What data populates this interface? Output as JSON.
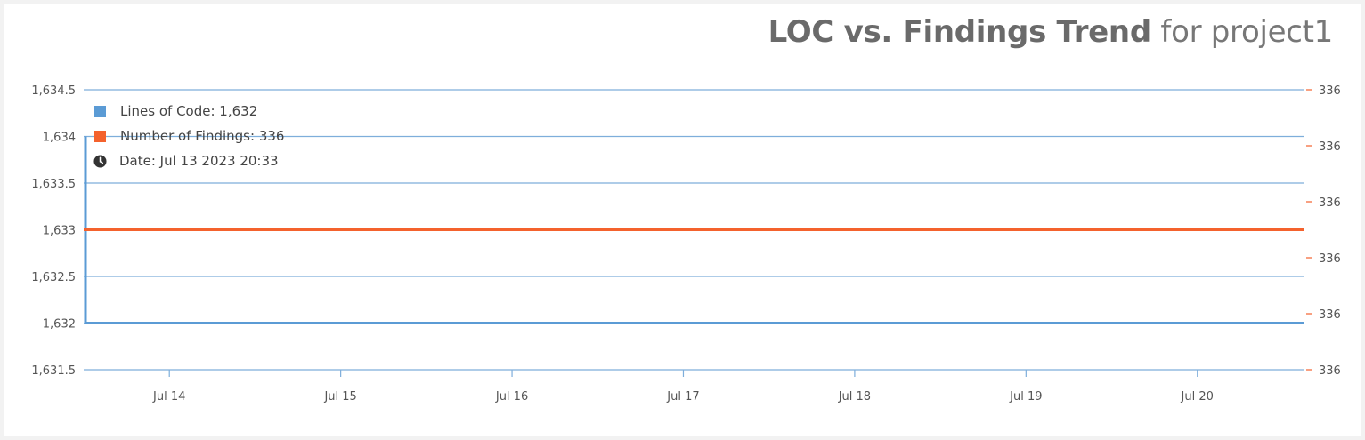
{
  "title": {
    "bold": "LOC vs. Findings Trend",
    "rest": "for project1"
  },
  "legend": {
    "loc_label": "Lines of Code: 1,632",
    "findings_label": "Number of Findings: 336",
    "date_label": "Date: Jul 13 2023 20:33",
    "date_icon": "clock-icon"
  },
  "colors": {
    "loc": "#5b9bd5",
    "findings": "#f4622d",
    "grid": "#7eaedb"
  },
  "chart_data": {
    "type": "line",
    "title": "LOC vs. Findings Trend for project1",
    "x_ticks": [
      "Jul 14",
      "Jul 15",
      "Jul 16",
      "Jul 17",
      "Jul 18",
      "Jul 19",
      "Jul 20"
    ],
    "xlim": [
      "Jul 13 2023 12:00",
      "Jul 20 2023 15:00"
    ],
    "y_left": {
      "range": [
        1631.5,
        1634.5
      ],
      "ticks": [
        "1,634.5",
        "1,634",
        "1,633.5",
        "1,633",
        "1,632.5",
        "1,632",
        "1,631.5"
      ]
    },
    "y_right": {
      "ticks": [
        "336",
        "336",
        "336",
        "336",
        "336",
        "336"
      ]
    },
    "series": [
      {
        "name": "Lines of Code",
        "axis": "left",
        "x": [
          "Jul 13 2023 20:33",
          "Jul 20 2023 15:00"
        ],
        "values": [
          1632,
          1632
        ]
      },
      {
        "name": "Number of Findings",
        "axis": "right",
        "x": [
          "Jul 13 2023 12:00",
          "Jul 20 2023 15:00"
        ],
        "values": [
          336,
          336
        ]
      }
    ],
    "grid": true,
    "legend_position": "top-left"
  }
}
